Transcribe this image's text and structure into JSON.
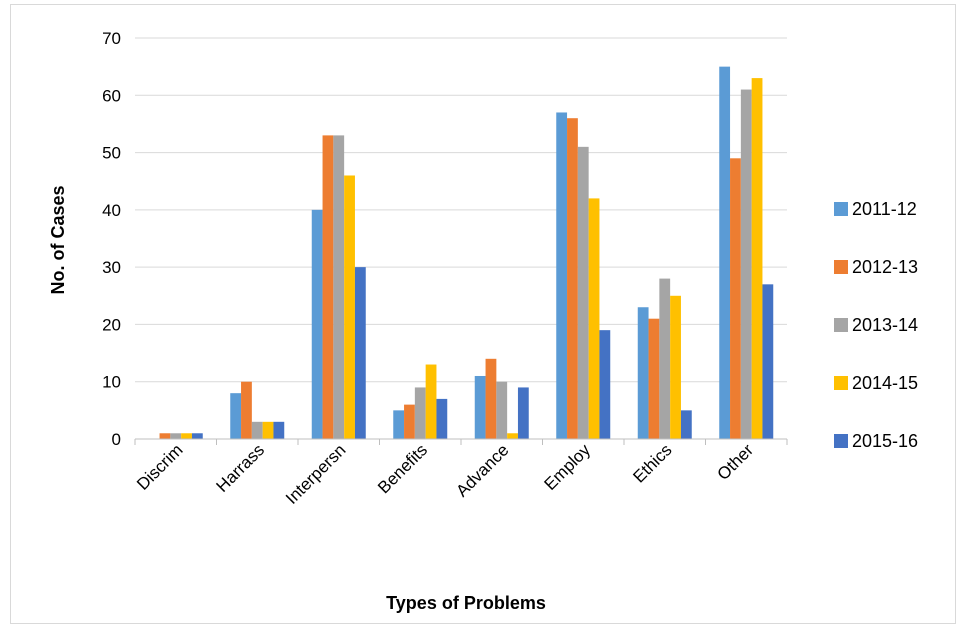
{
  "chart_data": {
    "type": "bar",
    "title": "",
    "xlabel": "Types of Problems",
    "ylabel": "No. of Cases",
    "ylim": [
      0,
      70
    ],
    "yticks": [
      0,
      10,
      20,
      30,
      40,
      50,
      60,
      70
    ],
    "grid": "horizontal",
    "legend_position": "right",
    "categories": [
      "Discrim",
      "Harrass",
      "Interpersn",
      "Benefits",
      "Advance",
      "Employ",
      "Ethics",
      "Other"
    ],
    "series": [
      {
        "name": "2011-12",
        "color": "#5b9bd5",
        "values": [
          0,
          8,
          40,
          5,
          11,
          57,
          23,
          65
        ]
      },
      {
        "name": "2012-13",
        "color": "#ed7d31",
        "values": [
          1,
          10,
          53,
          6,
          14,
          56,
          21,
          49
        ]
      },
      {
        "name": "2013-14",
        "color": "#a5a5a5",
        "values": [
          1,
          3,
          53,
          9,
          10,
          51,
          28,
          61
        ]
      },
      {
        "name": "2014-15",
        "color": "#ffc000",
        "values": [
          1,
          3,
          46,
          13,
          1,
          42,
          25,
          63
        ]
      },
      {
        "name": "2015-16",
        "color": "#4472c4",
        "values": [
          1,
          3,
          30,
          7,
          9,
          19,
          5,
          27
        ]
      }
    ]
  }
}
